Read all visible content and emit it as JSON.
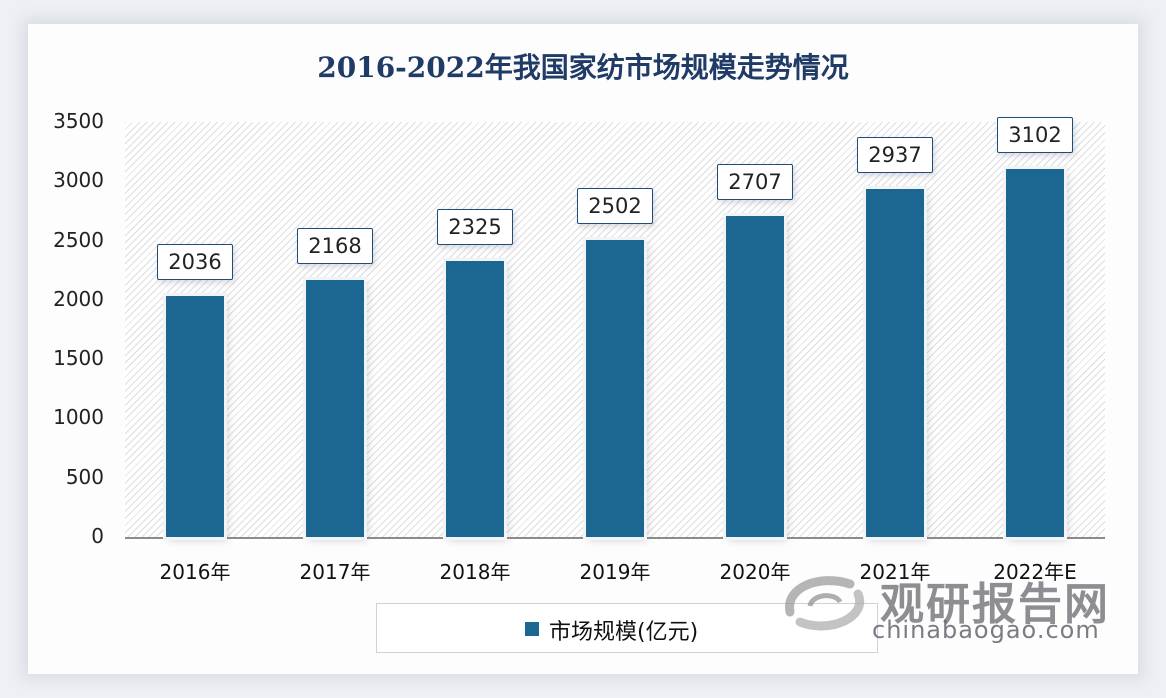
{
  "title": "2016-2022年我国家纺市场规模走势情况",
  "chart_data": {
    "type": "bar",
    "title": "2016-2022年我国家纺市场规模走势情况",
    "xlabel": "",
    "ylabel": "",
    "categories": [
      "2016年",
      "2017年",
      "2018年",
      "2019年",
      "2020年",
      "2021年",
      "2022年E"
    ],
    "series": [
      {
        "name": "市场规模(亿元)",
        "values": [
          2036,
          2168,
          2325,
          2502,
          2707,
          2937,
          3102
        ],
        "color": "#1b6792"
      }
    ],
    "ylim": [
      0,
      3500
    ],
    "yticks": [
      0,
      500,
      1000,
      1500,
      2000,
      2500,
      3000,
      3500
    ],
    "grid": false,
    "legend_position": "bottom",
    "data_labels": true
  },
  "yticks": [
    "3500",
    "3000",
    "2500",
    "2000",
    "1500",
    "1000",
    "500",
    "0"
  ],
  "bars": [
    {
      "category": "2016年",
      "value": "2036"
    },
    {
      "category": "2017年",
      "value": "2168"
    },
    {
      "category": "2018年",
      "value": "2325"
    },
    {
      "category": "2019年",
      "value": "2502"
    },
    {
      "category": "2020年",
      "value": "2707"
    },
    {
      "category": "2021年",
      "value": "2937"
    },
    {
      "category": "2022年E",
      "value": "3102"
    }
  ],
  "legend": {
    "label": "市场规模(亿元)",
    "color": "#1b6792"
  },
  "watermark": {
    "name_cn": "观研报告网",
    "domain": "chinabaogao.com"
  }
}
